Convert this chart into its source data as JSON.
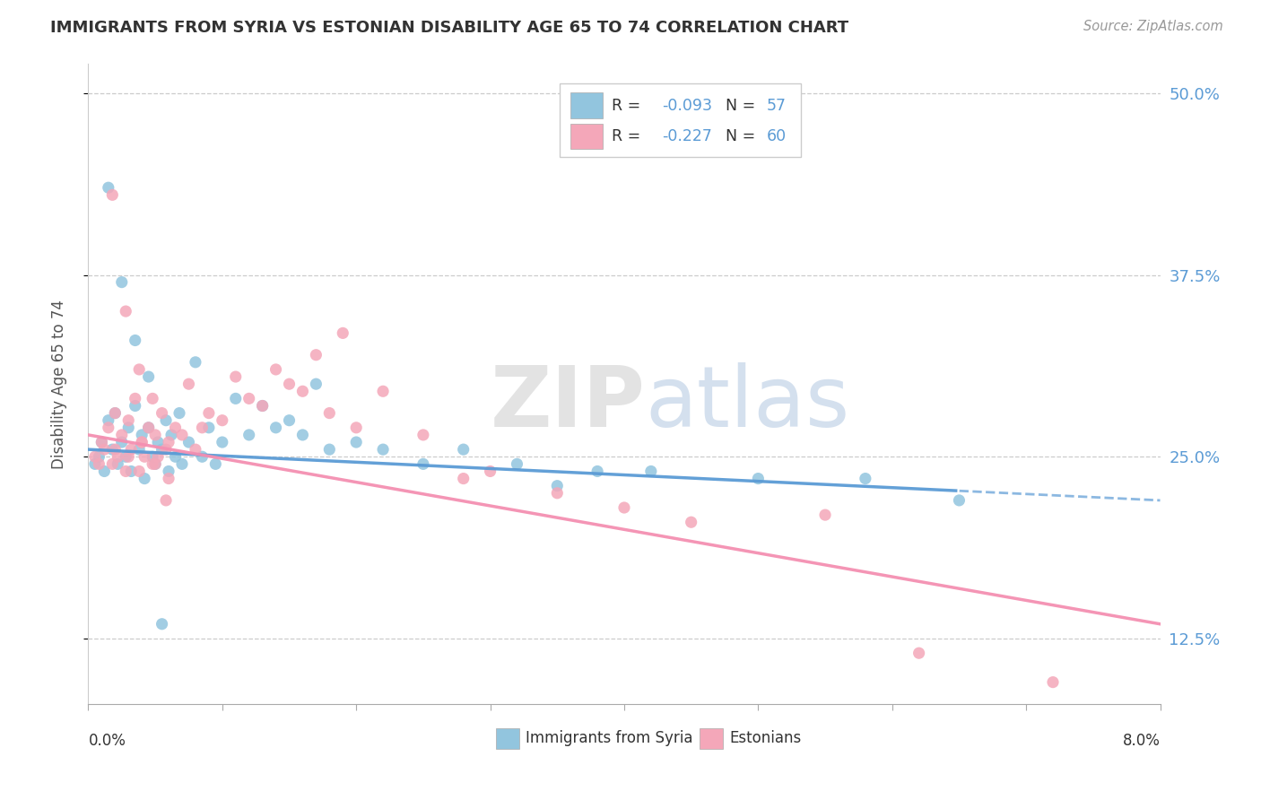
{
  "title": "IMMIGRANTS FROM SYRIA VS ESTONIAN DISABILITY AGE 65 TO 74 CORRELATION CHART",
  "source_text": "Source: ZipAtlas.com",
  "ylabel": "Disability Age 65 to 74",
  "legend_label1": "Immigrants from Syria",
  "legend_label2": "Estonians",
  "R1": -0.093,
  "N1": 57,
  "R2": -0.227,
  "N2": 60,
  "color1": "#92c5de",
  "color2": "#f4a7b9",
  "line_color1": "#5b9bd5",
  "line_color2": "#f48fb1",
  "x_min": 0.0,
  "x_max": 8.0,
  "y_min": 8.0,
  "y_max": 52.0,
  "yticks": [
    12.5,
    25.0,
    37.5,
    50.0
  ],
  "ytick_labels": [
    "12.5%",
    "25.0%",
    "37.5%",
    "50.0%"
  ],
  "background_color": "#ffffff",
  "grid_color": "#cccccc",
  "scatter1_x": [
    0.05,
    0.08,
    0.1,
    0.12,
    0.15,
    0.18,
    0.2,
    0.22,
    0.25,
    0.28,
    0.3,
    0.32,
    0.35,
    0.38,
    0.4,
    0.42,
    0.45,
    0.48,
    0.5,
    0.52,
    0.55,
    0.58,
    0.6,
    0.62,
    0.65,
    0.68,
    0.7,
    0.75,
    0.8,
    0.85,
    0.9,
    0.95,
    1.0,
    1.1,
    1.2,
    1.3,
    1.4,
    1.5,
    1.6,
    1.7,
    1.8,
    2.0,
    2.2,
    2.5,
    2.8,
    3.2,
    3.8,
    4.2,
    5.0,
    5.8,
    6.5,
    0.15,
    0.25,
    0.35,
    0.45,
    0.55,
    3.5
  ],
  "scatter1_y": [
    24.5,
    25.0,
    26.0,
    24.0,
    27.5,
    25.5,
    28.0,
    24.5,
    26.0,
    25.0,
    27.0,
    24.0,
    28.5,
    25.5,
    26.5,
    23.5,
    27.0,
    25.0,
    24.5,
    26.0,
    25.5,
    27.5,
    24.0,
    26.5,
    25.0,
    28.0,
    24.5,
    26.0,
    31.5,
    25.0,
    27.0,
    24.5,
    26.0,
    29.0,
    26.5,
    28.5,
    27.0,
    27.5,
    26.5,
    30.0,
    25.5,
    26.0,
    25.5,
    24.5,
    25.5,
    24.5,
    24.0,
    24.0,
    23.5,
    23.5,
    22.0,
    43.5,
    37.0,
    33.0,
    30.5,
    13.5,
    23.0
  ],
  "scatter2_x": [
    0.05,
    0.08,
    0.1,
    0.12,
    0.15,
    0.18,
    0.2,
    0.22,
    0.25,
    0.28,
    0.3,
    0.32,
    0.35,
    0.38,
    0.4,
    0.42,
    0.45,
    0.48,
    0.5,
    0.52,
    0.55,
    0.58,
    0.6,
    0.65,
    0.7,
    0.75,
    0.8,
    0.85,
    0.9,
    1.0,
    1.1,
    1.2,
    1.3,
    1.4,
    1.5,
    1.6,
    1.7,
    1.8,
    1.9,
    2.0,
    2.2,
    2.5,
    2.8,
    3.0,
    3.5,
    4.0,
    4.5,
    5.5,
    6.2,
    7.2,
    0.18,
    0.28,
    0.38,
    0.48,
    0.58,
    0.2,
    0.3,
    0.4,
    0.5,
    0.6
  ],
  "scatter2_y": [
    25.0,
    24.5,
    26.0,
    25.5,
    27.0,
    24.5,
    28.0,
    25.0,
    26.5,
    24.0,
    27.5,
    25.5,
    29.0,
    24.0,
    26.0,
    25.0,
    27.0,
    24.5,
    26.5,
    25.0,
    28.0,
    25.5,
    26.0,
    27.0,
    26.5,
    30.0,
    25.5,
    27.0,
    28.0,
    27.5,
    30.5,
    29.0,
    28.5,
    31.0,
    30.0,
    29.5,
    32.0,
    28.0,
    33.5,
    27.0,
    29.5,
    26.5,
    23.5,
    24.0,
    22.5,
    21.5,
    20.5,
    21.0,
    11.5,
    9.5,
    43.0,
    35.0,
    31.0,
    29.0,
    22.0,
    25.5,
    25.0,
    26.0,
    24.5,
    23.5
  ]
}
